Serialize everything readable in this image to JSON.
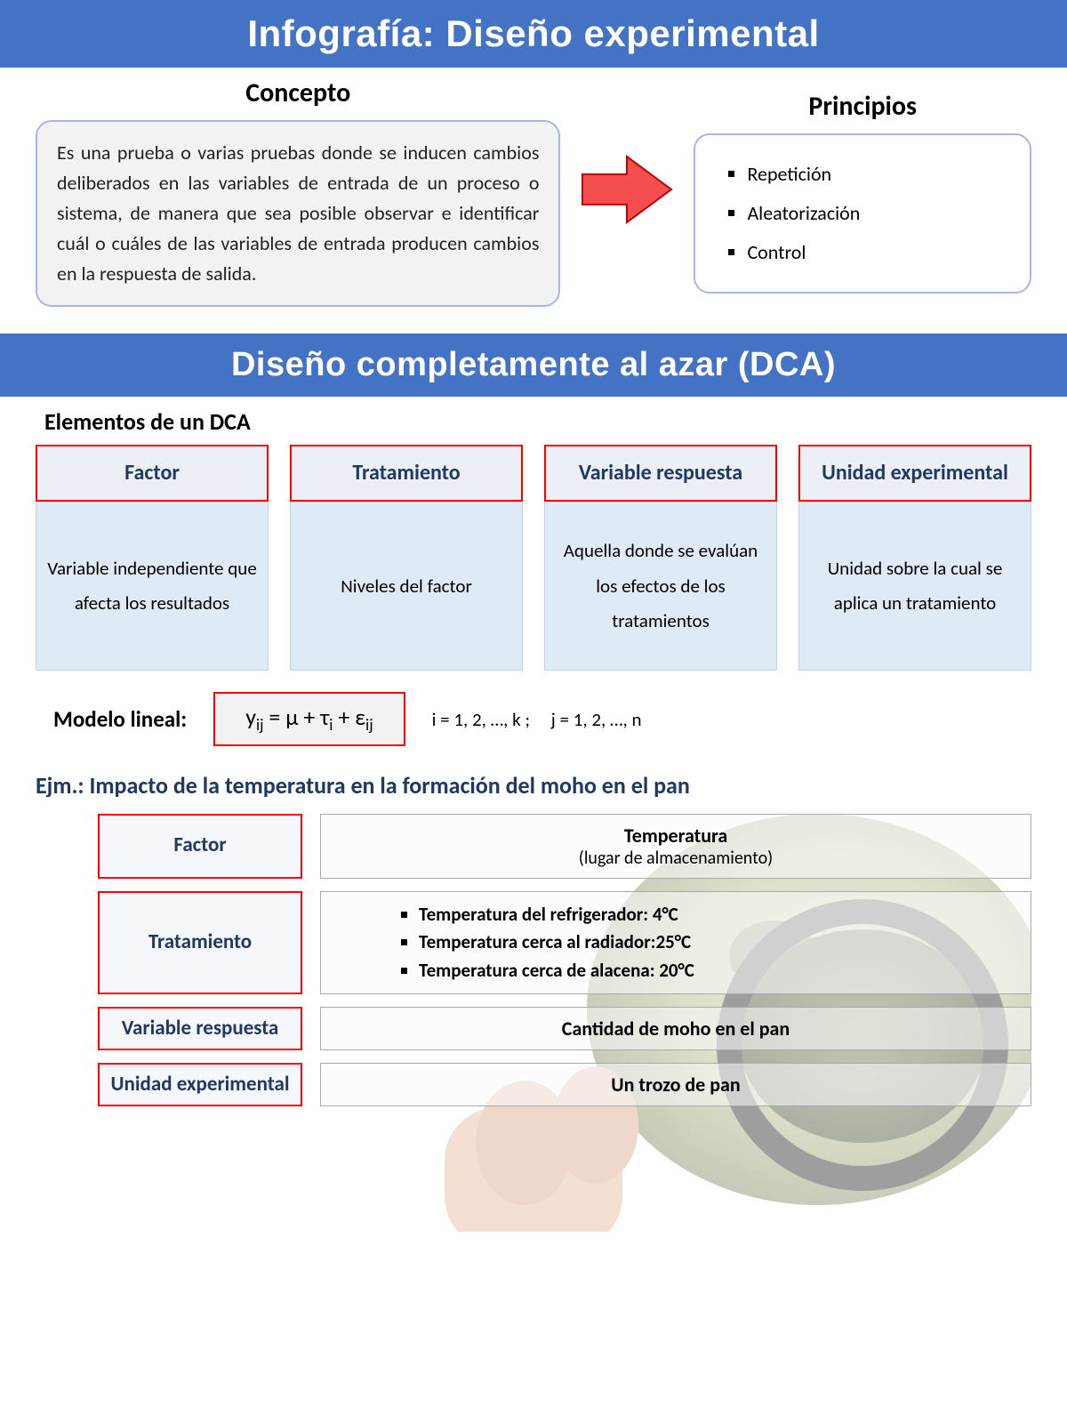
{
  "colors": {
    "banner_bg": "#4472c4",
    "banner_text": "#ffffff",
    "box_border": "#a6b8e0",
    "box_bg": "#f2f2f2",
    "elem_head_bg": "#eceff5",
    "elem_head_border": "#ff0000",
    "elem_head_text": "#1f3864",
    "elem_body_bg": "#deeaf6",
    "arrow_fill": "#f44e4e",
    "arrow_stroke": "#c00000"
  },
  "banner1": "Infografía: Diseño experimental",
  "concepto": {
    "title": "Concepto",
    "text": "Es una prueba o varias pruebas donde se inducen cambios deliberados en las variables de entrada de un proceso o sistema, de manera que sea posible observar e identificar cuál o cuáles de las variables de entrada producen cambios en la respuesta de salida."
  },
  "principios": {
    "title": "Principios",
    "items": [
      "Repetición",
      "Aleatorización",
      "Control"
    ]
  },
  "banner2": "Diseño completamente al azar (DCA)",
  "elements_title": "Elementos de un DCA",
  "elements": [
    {
      "head": "Factor",
      "body": "Variable independiente que afecta los resultados"
    },
    {
      "head": "Tratamiento",
      "body": "Niveles del factor"
    },
    {
      "head": "Variable respuesta",
      "body": "Aquella donde se evalúan los efectos de los tratamientos"
    },
    {
      "head": "Unidad experimental",
      "body": "Unidad sobre la cual se aplica un tratamiento"
    }
  ],
  "model": {
    "label": "Modelo lineal:",
    "formula_html": "y<sub>ij</sub> = μ + τ<sub>i</sub> + ε<sub>ij</sub>",
    "indices": "i = 1, 2, …, k ;     j = 1, 2, …, n"
  },
  "example": {
    "title": "Ejm.: Impacto de la temperatura en la formación del moho en el pan",
    "rows": [
      {
        "label": "Factor",
        "value_main": "Temperatura",
        "value_sub": "(lugar de almacenamiento)"
      },
      {
        "label": "Tratamiento",
        "bullets": [
          "Temperatura del refrigerador: 4°C",
          "Temperatura cerca al radiador:25°C",
          "Temperatura cerca de alacena: 20°C"
        ]
      },
      {
        "label": "Variable respuesta",
        "value_main": "Cantidad de moho en el pan"
      },
      {
        "label": "Unidad experimental",
        "value_main": "Un trozo de pan"
      }
    ]
  }
}
